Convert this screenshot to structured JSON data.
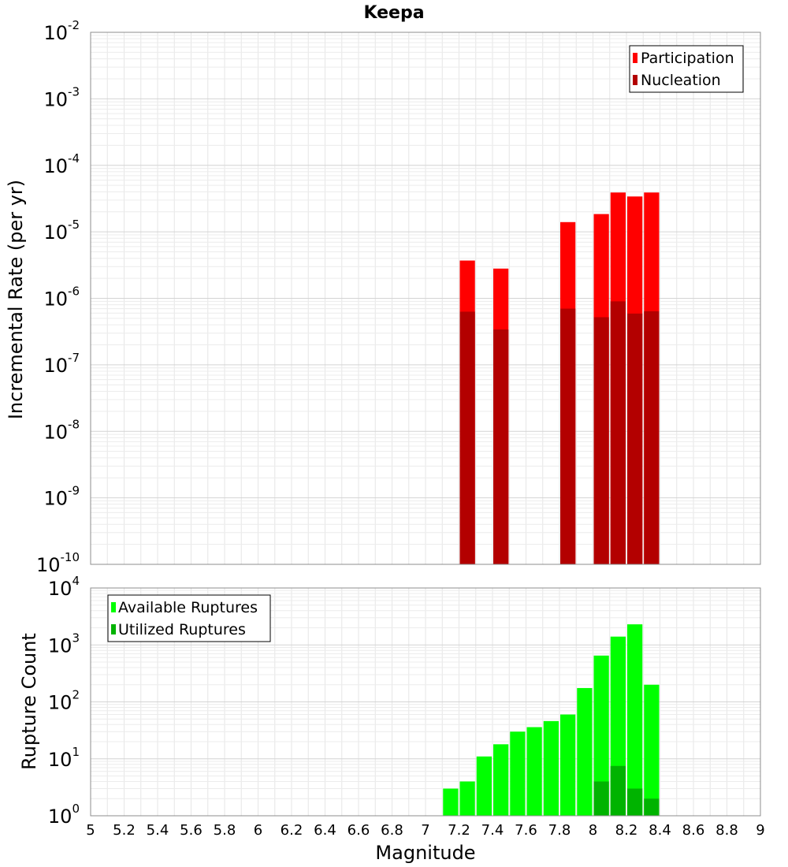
{
  "chart_data": [
    {
      "type": "bar",
      "title": "Keepa",
      "xlabel": "",
      "ylabel": "Incremental Rate (per yr)",
      "yscale": "log",
      "xlim": [
        5,
        9
      ],
      "ylim_exponents": [
        -10,
        -2
      ],
      "ytick_base": "10",
      "ytick_exponents": [
        "-10",
        "-9",
        "-8",
        "-7",
        "-6",
        "-5",
        "-4",
        "-3",
        "-2"
      ],
      "bin_width": 0.1,
      "grid": true,
      "legend_position": "top-right",
      "series": [
        {
          "name": "Participation",
          "color": "#ff0000",
          "points": [
            [
              7.25,
              3.7e-06
            ],
            [
              7.45,
              2.8e-06
            ],
            [
              7.85,
              1.4e-05
            ],
            [
              8.05,
              1.85e-05
            ],
            [
              8.15,
              3.9e-05
            ],
            [
              8.25,
              3.4e-05
            ],
            [
              8.35,
              3.9e-05
            ]
          ]
        },
        {
          "name": "Nucleation",
          "color": "#b30000",
          "points": [
            [
              7.25,
              6.3e-07
            ],
            [
              7.45,
              3.4e-07
            ],
            [
              7.85,
              7e-07
            ],
            [
              8.05,
              5.2e-07
            ],
            [
              8.15,
              9e-07
            ],
            [
              8.25,
              5.9e-07
            ],
            [
              8.35,
              6.4e-07
            ]
          ]
        }
      ]
    },
    {
      "type": "bar",
      "title": "",
      "xlabel": "Magnitude",
      "ylabel": "Rupture Count",
      "yscale": "log",
      "xlim": [
        5,
        9
      ],
      "ylim_exponents": [
        0,
        4
      ],
      "ytick_base": "10",
      "ytick_exponents": [
        "0",
        "1",
        "2",
        "3",
        "4"
      ],
      "xticks": [
        "5",
        "5.2",
        "5.4",
        "5.6",
        "5.8",
        "6",
        "6.2",
        "6.4",
        "6.6",
        "6.8",
        "7",
        "7.2",
        "7.4",
        "7.6",
        "7.8",
        "8",
        "8.2",
        "8.4",
        "8.6",
        "8.8",
        "9"
      ],
      "bin_width": 0.1,
      "grid": true,
      "legend_position": "top-left",
      "series": [
        {
          "name": "Available Ruptures",
          "color": "#00ff00",
          "points": [
            [
              6.55,
              1
            ],
            [
              6.95,
              1
            ],
            [
              7.15,
              3
            ],
            [
              7.25,
              4
            ],
            [
              7.35,
              11
            ],
            [
              7.45,
              18
            ],
            [
              7.55,
              30
            ],
            [
              7.65,
              36
            ],
            [
              7.75,
              46
            ],
            [
              7.85,
              60
            ],
            [
              7.95,
              175
            ],
            [
              8.05,
              650
            ],
            [
              8.15,
              1400
            ],
            [
              8.25,
              2300
            ],
            [
              8.35,
              200
            ]
          ]
        },
        {
          "name": "Utilized Ruptures",
          "color": "#00b300",
          "points": [
            [
              7.25,
              1
            ],
            [
              7.45,
              1
            ],
            [
              7.85,
              1
            ],
            [
              8.05,
              4
            ],
            [
              8.15,
              7.5
            ],
            [
              8.25,
              3
            ],
            [
              8.35,
              2
            ]
          ]
        }
      ]
    }
  ]
}
